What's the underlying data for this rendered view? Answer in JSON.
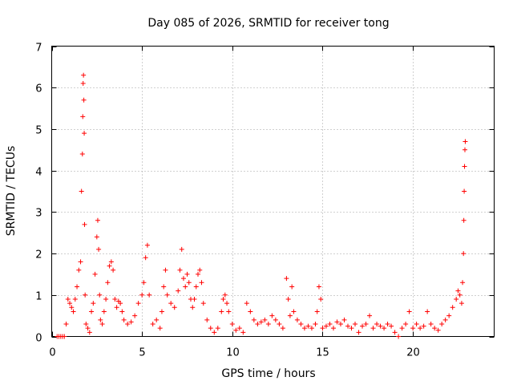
{
  "chart_data": {
    "type": "scatter",
    "title": "Day 085 of 2026, SRMTID for receiver tong",
    "xlabel": "GPS time / hours",
    "ylabel": "SRMTID / TECUs",
    "xlim": [
      0,
      24.5
    ],
    "ylim": [
      0,
      7
    ],
    "xticks": [
      0,
      5,
      10,
      15,
      20
    ],
    "xtick_labels": [
      "0",
      "5",
      "10",
      "15",
      "20"
    ],
    "yticks": [
      0,
      1,
      2,
      3,
      4,
      5,
      6,
      7
    ],
    "ytick_labels": [
      "0",
      "1",
      "2",
      "3",
      "4",
      "5",
      "6",
      "7"
    ],
    "grid": true,
    "marker": "+",
    "color": "#ff0000",
    "series": [
      {
        "name": "SRMTID",
        "x": [
          0.3,
          0.4,
          0.5,
          0.6,
          0.7,
          0.8,
          0.9,
          1.0,
          1.1,
          1.2,
          1.3,
          1.4,
          1.5,
          1.6,
          1.65,
          1.7,
          1.72,
          1.74,
          1.76,
          1.78,
          1.8,
          1.82,
          1.85,
          1.9,
          2.0,
          2.1,
          2.2,
          2.3,
          2.4,
          2.5,
          2.55,
          2.6,
          2.65,
          2.7,
          2.8,
          2.9,
          3.0,
          3.1,
          3.2,
          3.3,
          3.4,
          3.5,
          3.6,
          3.7,
          3.8,
          3.9,
          4.0,
          4.2,
          4.4,
          4.6,
          4.8,
          5.0,
          5.1,
          5.2,
          5.3,
          5.4,
          5.6,
          5.8,
          6.0,
          6.1,
          6.2,
          6.3,
          6.4,
          6.6,
          6.8,
          7.0,
          7.1,
          7.2,
          7.3,
          7.4,
          7.5,
          7.6,
          7.7,
          7.8,
          7.9,
          8.0,
          8.1,
          8.2,
          8.3,
          8.4,
          8.6,
          8.8,
          9.0,
          9.2,
          9.4,
          9.5,
          9.6,
          9.7,
          9.8,
          10.0,
          10.2,
          10.4,
          10.6,
          10.8,
          11.0,
          11.2,
          11.4,
          11.6,
          11.8,
          12.0,
          12.2,
          12.4,
          12.6,
          12.8,
          13.0,
          13.1,
          13.2,
          13.3,
          13.4,
          13.6,
          13.8,
          14.0,
          14.2,
          14.4,
          14.6,
          14.7,
          14.8,
          14.9,
          15.0,
          15.2,
          15.4,
          15.6,
          15.8,
          16.0,
          16.2,
          16.4,
          16.6,
          16.8,
          17.0,
          17.2,
          17.4,
          17.6,
          17.8,
          18.0,
          18.2,
          18.4,
          18.6,
          18.8,
          19.0,
          19.2,
          19.4,
          19.6,
          19.8,
          20.0,
          20.2,
          20.4,
          20.6,
          20.8,
          21.0,
          21.2,
          21.4,
          21.6,
          21.8,
          22.0,
          22.2,
          22.4,
          22.5,
          22.6,
          22.7,
          22.75,
          22.8,
          22.82,
          22.84,
          22.86,
          22.88,
          22.9
        ],
        "y": [
          0.0,
          0.0,
          0.0,
          0.0,
          0.0,
          0.3,
          0.9,
          0.8,
          0.7,
          0.6,
          0.9,
          1.2,
          1.6,
          1.8,
          3.5,
          4.4,
          5.3,
          6.1,
          6.3,
          5.7,
          4.9,
          2.7,
          1.0,
          0.3,
          0.2,
          0.1,
          0.6,
          0.8,
          1.5,
          2.4,
          2.8,
          2.1,
          1.0,
          0.4,
          0.3,
          0.6,
          0.9,
          1.3,
          1.7,
          1.8,
          1.6,
          0.9,
          0.7,
          0.85,
          0.8,
          0.6,
          0.4,
          0.3,
          0.35,
          0.5,
          0.8,
          1.0,
          1.3,
          1.9,
          2.2,
          1.0,
          0.3,
          0.4,
          0.2,
          0.6,
          1.2,
          1.6,
          1.0,
          0.8,
          0.7,
          1.1,
          1.6,
          2.1,
          1.4,
          1.2,
          1.5,
          1.3,
          0.9,
          0.7,
          0.9,
          1.2,
          1.5,
          1.6,
          1.3,
          0.8,
          0.4,
          0.2,
          0.1,
          0.2,
          0.6,
          0.9,
          1.0,
          0.8,
          0.6,
          0.3,
          0.15,
          0.2,
          0.1,
          0.8,
          0.6,
          0.4,
          0.3,
          0.35,
          0.4,
          0.3,
          0.5,
          0.4,
          0.3,
          0.2,
          1.4,
          0.9,
          0.5,
          1.2,
          0.6,
          0.4,
          0.3,
          0.2,
          0.25,
          0.2,
          0.3,
          0.6,
          1.2,
          0.9,
          0.2,
          0.25,
          0.3,
          0.2,
          0.35,
          0.3,
          0.4,
          0.25,
          0.2,
          0.3,
          0.1,
          0.25,
          0.3,
          0.5,
          0.2,
          0.3,
          0.25,
          0.2,
          0.3,
          0.25,
          0.1,
          0.0,
          0.2,
          0.3,
          0.6,
          0.2,
          0.3,
          0.2,
          0.25,
          0.6,
          0.3,
          0.2,
          0.15,
          0.3,
          0.4,
          0.5,
          0.7,
          0.9,
          1.1,
          1.0,
          0.8,
          1.3,
          2.0,
          2.8,
          3.5,
          4.1,
          4.5,
          4.7
        ]
      }
    ]
  }
}
